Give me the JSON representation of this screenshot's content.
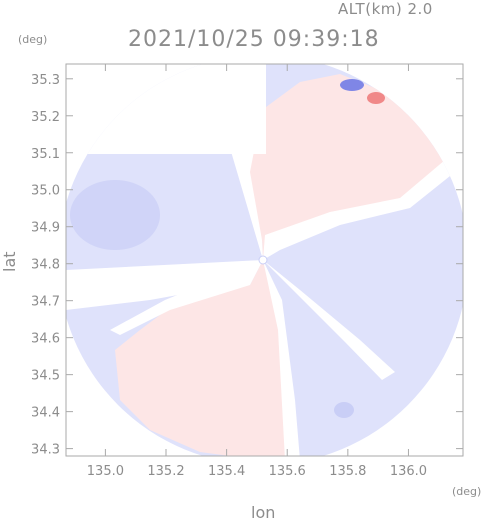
{
  "header": {
    "altitude_label": "ALT(km) 2.0",
    "timestamp": "2021/10/25 09:39:18"
  },
  "chart_data": {
    "type": "heatmap",
    "title": "",
    "xlabel": "lon",
    "ylabel": "lat",
    "x_unit": "(deg)",
    "y_unit": "(deg)",
    "xlim": [
      134.87,
      136.18
    ],
    "ylim": [
      34.28,
      35.34
    ],
    "x_ticks": [
      135.0,
      135.2,
      135.4,
      135.6,
      135.8,
      136.0
    ],
    "y_ticks": [
      34.3,
      34.4,
      34.5,
      34.6,
      34.7,
      34.8,
      34.9,
      35.0,
      35.1,
      35.2,
      35.3
    ],
    "radar_center": {
      "lon": 135.52,
      "lat": 34.81
    },
    "grid": false,
    "colors": {
      "approaching": "#dfe2fb",
      "approaching_strong": "#c9cef6",
      "receding": "#fde6e6",
      "receding_strong": "#f08888",
      "no_data": "#ffffff",
      "frame": "#aaaaaa",
      "text": "#8c8c8c"
    },
    "regions": [
      {
        "name": "northeast-receding-sector",
        "sign": "receding"
      },
      {
        "name": "southwest-receding-sector",
        "sign": "receding"
      },
      {
        "name": "west-approaching-sector",
        "sign": "approaching"
      },
      {
        "name": "east-approaching-sector",
        "sign": "approaching"
      },
      {
        "name": "south-approaching-sector",
        "sign": "approaching"
      }
    ]
  }
}
